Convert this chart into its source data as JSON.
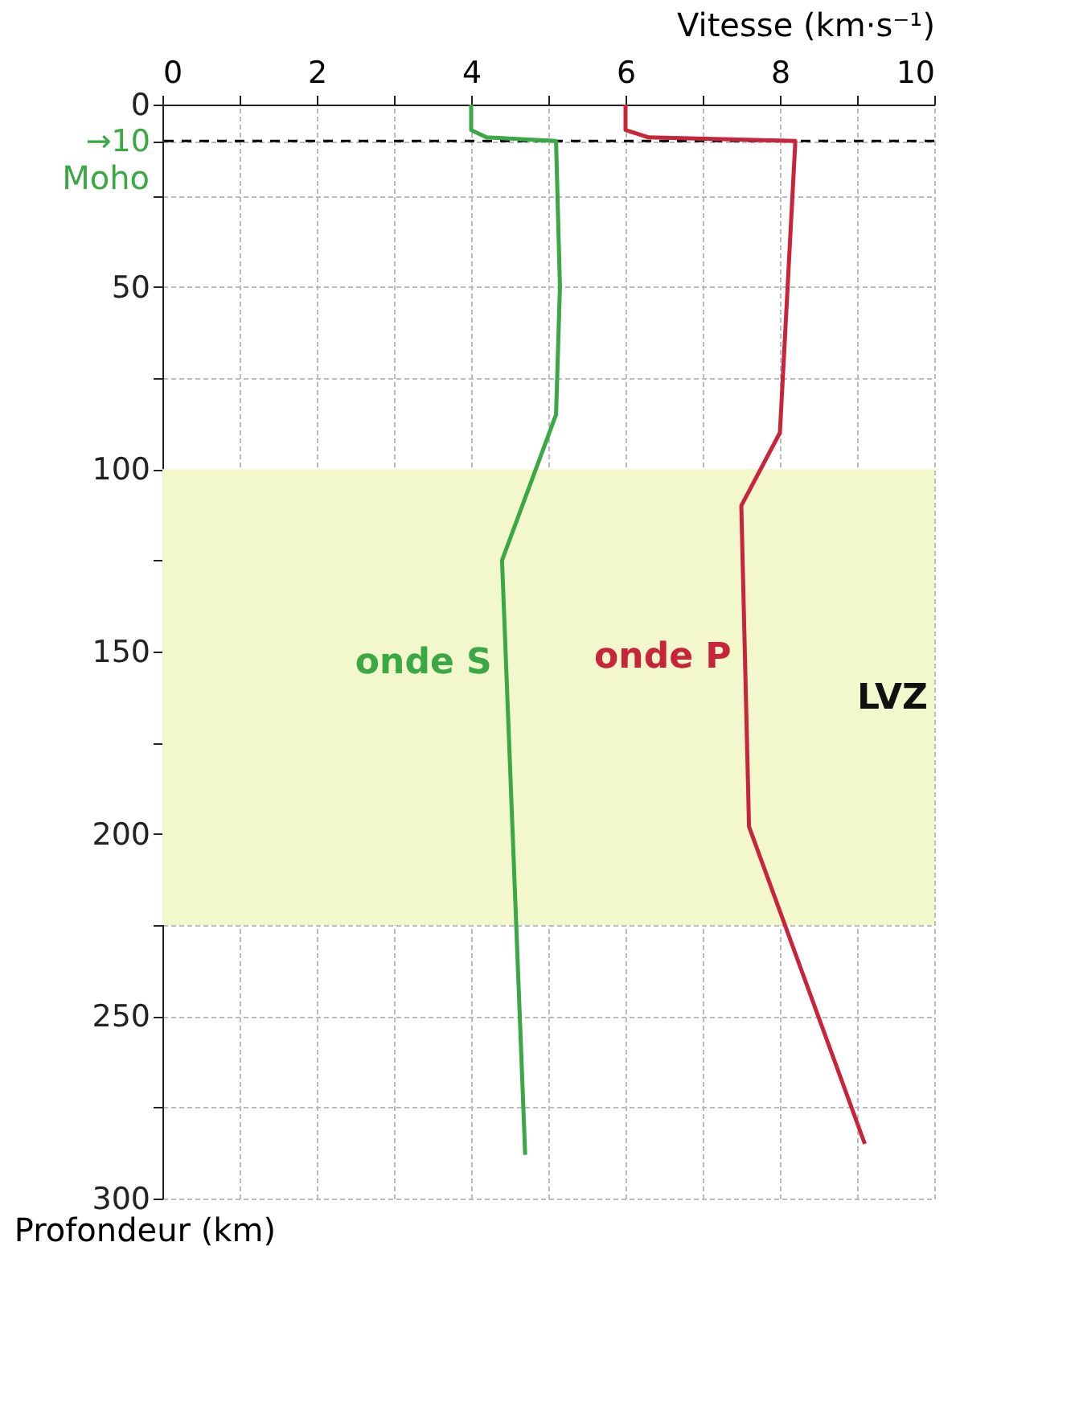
{
  "chart_data": {
    "type": "line",
    "xlabel": "Vitesse (km·s⁻¹)",
    "ylabel": "Profondeur (km)",
    "xlim": [
      0,
      10
    ],
    "xticks": [
      0,
      {
        "value": 1,
        "label": null
      },
      2,
      {
        "value": 3,
        "label": null
      },
      4,
      {
        "value": 5,
        "label": null
      },
      6,
      {
        "value": 7,
        "label": null
      },
      8,
      {
        "value": 9,
        "label": null
      },
      10
    ],
    "ylim": [
      300,
      0
    ],
    "yticks": [
      0,
      {
        "value": 10,
        "label": "→10"
      },
      {
        "value": 25,
        "label": null
      },
      50,
      {
        "value": 75,
        "label": null
      },
      100,
      {
        "value": 125,
        "label": null
      },
      150,
      {
        "value": 175,
        "label": null
      },
      200,
      {
        "value": 225,
        "label": null
      },
      250,
      {
        "value": 275,
        "label": null
      },
      300
    ],
    "grid": true,
    "legend": false,
    "line_style": "solid",
    "series": [
      {
        "name": "onde S",
        "color": "#3aa845",
        "x": [
          4,
          4,
          4.2,
          5.1,
          5.15,
          5.1,
          4.4,
          4.7
        ],
        "values": [
          0,
          7,
          9,
          10,
          50,
          85,
          125,
          288
        ]
      },
      {
        "name": "onde P",
        "color": "#c8243c",
        "x": [
          6,
          6,
          6.3,
          8.2,
          8.1,
          8.0,
          7.5,
          7.6,
          9.1
        ],
        "values": [
          0,
          7,
          9,
          10,
          50,
          90,
          110,
          198,
          285
        ]
      }
    ],
    "ref_lines": [
      {
        "axis": "y",
        "value": 10,
        "label": "Moho",
        "color": "#000000",
        "line_style": "dashed"
      }
    ],
    "bands": [
      {
        "axis": "y",
        "from": 100,
        "to": 225,
        "label": "LVZ",
        "color": "#f3f8cc"
      }
    ]
  }
}
